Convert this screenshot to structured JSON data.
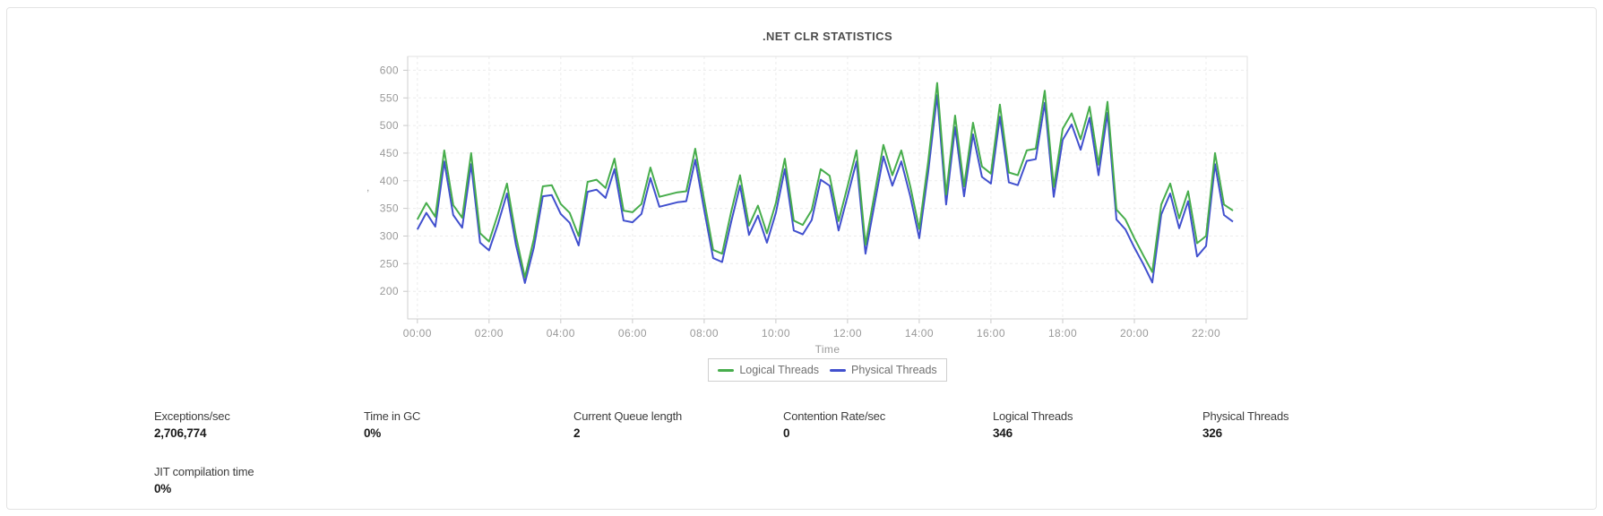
{
  "chart_data": {
    "type": "line",
    "title": ".NET CLR STATISTICS",
    "xlabel": "Time",
    "ylabel": ",",
    "x_start": "00:00",
    "x_step_minutes": 15,
    "x_tick_hours": [
      0,
      2,
      4,
      6,
      8,
      10,
      12,
      14,
      16,
      18,
      20,
      22
    ],
    "x_tick_labels": [
      "00:00",
      "02:00",
      "04:00",
      "06:00",
      "08:00",
      "10:00",
      "12:00",
      "14:00",
      "16:00",
      "18:00",
      "20:00",
      "22:00"
    ],
    "y_ticks": [
      200,
      250,
      300,
      350,
      400,
      450,
      500,
      550,
      600
    ],
    "xlim_hours": [
      -0.27,
      23.15
    ],
    "ylim": [
      150,
      625
    ],
    "grid": true,
    "legend_position": "bottom",
    "series": [
      {
        "name": "Logical Threads",
        "color": "#47ad4c",
        "values": [
          330,
          360,
          335,
          455,
          356,
          333,
          450,
          305,
          290,
          340,
          395,
          300,
          225,
          295,
          390,
          392,
          358,
          342,
          300,
          398,
          402,
          387,
          440,
          346,
          343,
          358,
          424,
          371,
          375,
          379,
          381,
          458,
          365,
          275,
          268,
          343,
          410,
          319,
          355,
          305,
          360,
          440,
          328,
          320,
          347,
          421,
          409,
          327,
          390,
          455,
          284,
          375,
          465,
          410,
          455,
          390,
          313,
          435,
          577,
          375,
          518,
          390,
          505,
          426,
          413,
          538,
          415,
          410,
          455,
          458,
          563,
          389,
          494,
          522,
          475,
          534,
          429,
          543,
          348,
          330,
          296,
          265,
          235,
          357,
          395,
          332,
          381,
          287,
          300,
          450,
          357,
          346
        ]
      },
      {
        "name": "Physical Threads",
        "color": "#4150ce",
        "values": [
          312,
          342,
          317,
          435,
          338,
          315,
          430,
          288,
          274,
          322,
          377,
          284,
          215,
          279,
          372,
          374,
          340,
          324,
          283,
          380,
          384,
          369,
          421,
          328,
          325,
          340,
          405,
          353,
          357,
          361,
          363,
          438,
          347,
          260,
          253,
          325,
          391,
          302,
          337,
          288,
          342,
          421,
          310,
          303,
          329,
          402,
          391,
          310,
          372,
          435,
          268,
          357,
          444,
          391,
          435,
          372,
          296,
          416,
          555,
          357,
          497,
          372,
          484,
          407,
          395,
          516,
          397,
          392,
          436,
          439,
          541,
          371,
          474,
          502,
          456,
          514,
          410,
          523,
          330,
          312,
          279,
          249,
          216,
          339,
          377,
          314,
          363,
          263,
          282,
          430,
          338,
          326
        ]
      }
    ]
  },
  "stats": {
    "items": [
      {
        "label": "Exceptions/sec",
        "value": "2,706,774"
      },
      {
        "label": "Time in GC",
        "value": "0%"
      },
      {
        "label": "Current Queue length",
        "value": "2"
      },
      {
        "label": "Contention Rate/sec",
        "value": "0"
      },
      {
        "label": "Logical Threads",
        "value": "346"
      },
      {
        "label": "Physical Threads",
        "value": "326"
      },
      {
        "label": "JIT compilation time",
        "value": "0%"
      }
    ]
  }
}
